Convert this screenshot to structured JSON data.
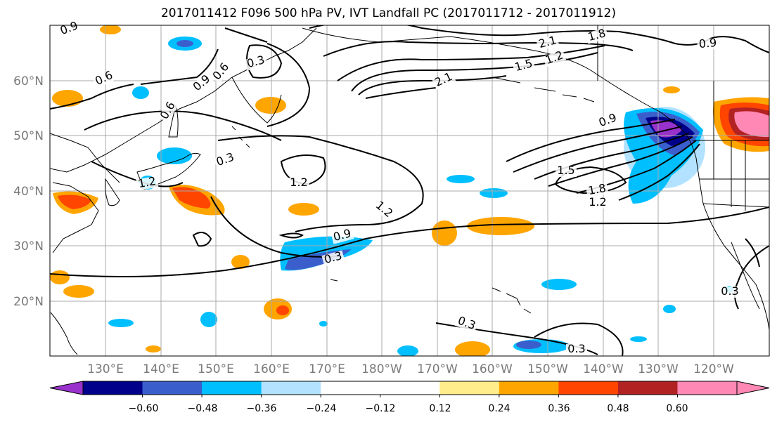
{
  "title": "2017011412 F096 500 hPa PV, IVT Landfall PC (2017011712 - 2017011912)",
  "lat_labels": [
    "60°N",
    "50°N",
    "40°N",
    "30°N",
    "20°N"
  ],
  "lon_labels": [
    "130°E",
    "140°E",
    "150°E",
    "160°E",
    "170°E",
    "180°W",
    "170°W",
    "160°W",
    "150°W",
    "140°W",
    "130°W",
    "120°W"
  ],
  "contour_labels": [
    "0.9",
    "0.6",
    "0.3",
    "0.9",
    "0.6",
    "0.6",
    "0.3",
    "1.2",
    "1.2",
    "1.2",
    "0.9",
    "0.3",
    "2.1",
    "2.1",
    "1.5",
    "1.2",
    "1.8",
    "0.9",
    "0.9",
    "1.5",
    "1.8",
    "1.2",
    "0.3",
    "0.3",
    "0.3"
  ],
  "colorbar": {
    "colors": [
      "#9932CC",
      "#00008B",
      "#3A5FCD",
      "#00BFFF",
      "#B2E2FF",
      "#FFFFFF",
      "#FFFFFF",
      "#FFEC8B",
      "#FFA500",
      "#FF4500",
      "#B22222",
      "#FF88B4"
    ],
    "tick_labels": [
      "−0.60",
      "−0.48",
      "−0.36",
      "−0.24",
      "−0.12",
      "0.12",
      "0.24",
      "0.36",
      "0.48",
      "0.60"
    ]
  }
}
